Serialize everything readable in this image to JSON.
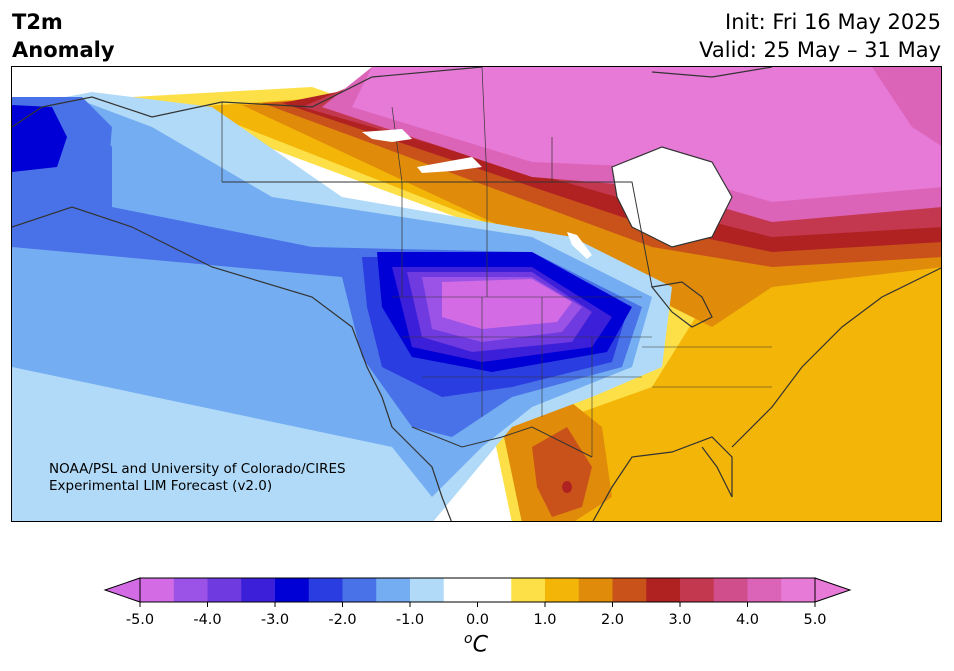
{
  "header": {
    "variable": "T2m",
    "subtitle": "Anomaly",
    "init": "Init: Fri 16 May 2025",
    "valid": "Valid: 25 May – 31 May"
  },
  "credit": {
    "line1": "NOAA/PSL and University of Colorado/CIRES",
    "line2": "Experimental LIM Forecast (v2.0)"
  },
  "colorbar": {
    "unit": "°C",
    "unit_base": "C",
    "unit_super": "o",
    "range": [
      -5.0,
      5.0
    ],
    "step": 0.5,
    "ticks": [
      "-5.0",
      "-4.0",
      "-3.0",
      "-2.0",
      "-1.0",
      "0.0",
      "1.0",
      "2.0",
      "3.0",
      "4.0",
      "5.0"
    ],
    "colors": [
      "#d36ce4",
      "#9b52e6",
      "#6f3ae0",
      "#3c1fd8",
      "#0000d6",
      "#2a3de0",
      "#4a72e8",
      "#74adf1",
      "#b0daf8",
      "#ffffff",
      "#ffffff",
      "#fde047",
      "#f3b508",
      "#e08b0a",
      "#c8521a",
      "#b02222",
      "#c4384f",
      "#d04e8c",
      "#dc64b8",
      "#e77ad6"
    ],
    "under_color": "#d36ce4",
    "over_color": "#e77ad6"
  }
}
